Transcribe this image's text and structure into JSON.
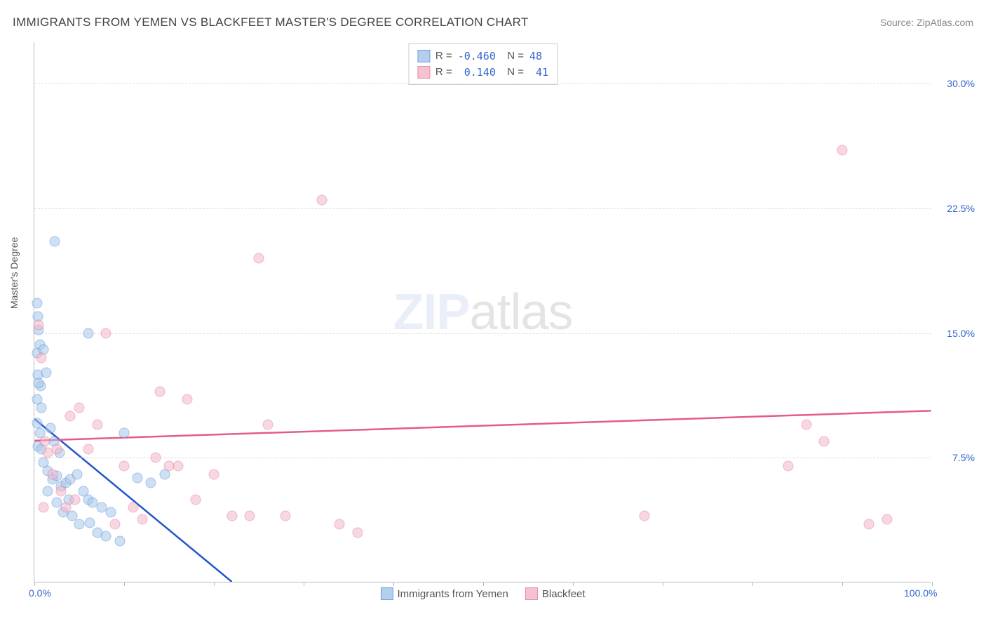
{
  "header": {
    "title": "IMMIGRANTS FROM YEMEN VS BLACKFEET MASTER'S DEGREE CORRELATION CHART",
    "source": "Source: ZipAtlas.com"
  },
  "chart": {
    "type": "scatter",
    "ylabel": "Master's Degree",
    "xlim": [
      0,
      100
    ],
    "ylim": [
      0,
      32.5
    ],
    "yticks": [
      7.5,
      15.0,
      22.5,
      30.0
    ],
    "ytick_labels": [
      "7.5%",
      "15.0%",
      "22.5%",
      "30.0%"
    ],
    "xtick_marks": [
      0,
      10,
      20,
      30,
      40,
      50,
      60,
      70,
      80,
      90,
      100
    ],
    "xtick_labels": {
      "0": "0.0%",
      "100": "100.0%"
    },
    "background_color": "#ffffff",
    "grid_color": "#dddddd",
    "axis_color": "#bbbbbb",
    "marker_size": 15,
    "series": [
      {
        "name": "Immigrants from Yemen",
        "fill_color": "#a7c7eb",
        "fill_opacity": 0.55,
        "stroke_color": "#5b8dd6",
        "trend_color": "#2255cc",
        "trend_width": 2.5,
        "R": "-0.460",
        "N": "48",
        "trend": {
          "x1": 0,
          "y1": 9.8,
          "x2": 22,
          "y2": 0
        },
        "points": [
          [
            0.3,
            16.8
          ],
          [
            0.4,
            16.0
          ],
          [
            0.5,
            15.2
          ],
          [
            0.3,
            13.8
          ],
          [
            0.6,
            14.3
          ],
          [
            0.4,
            12.5
          ],
          [
            0.7,
            11.8
          ],
          [
            0.5,
            12.0
          ],
          [
            1.0,
            14.0
          ],
          [
            1.3,
            12.6
          ],
          [
            0.3,
            11.0
          ],
          [
            0.8,
            10.5
          ],
          [
            0.3,
            9.6
          ],
          [
            0.6,
            9.0
          ],
          [
            0.4,
            8.2
          ],
          [
            0.8,
            8.0
          ],
          [
            1.8,
            9.3
          ],
          [
            2.2,
            8.5
          ],
          [
            2.8,
            7.8
          ],
          [
            1.0,
            7.2
          ],
          [
            1.5,
            6.7
          ],
          [
            2.0,
            6.2
          ],
          [
            2.5,
            6.4
          ],
          [
            3.0,
            5.8
          ],
          [
            3.5,
            6.0
          ],
          [
            4.0,
            6.2
          ],
          [
            4.8,
            6.5
          ],
          [
            5.5,
            5.5
          ],
          [
            6.0,
            5.0
          ],
          [
            6.5,
            4.8
          ],
          [
            7.5,
            4.5
          ],
          [
            8.5,
            4.2
          ],
          [
            2.5,
            4.8
          ],
          [
            3.2,
            4.2
          ],
          [
            4.2,
            4.0
          ],
          [
            5.0,
            3.5
          ],
          [
            6.2,
            3.6
          ],
          [
            7.0,
            3.0
          ],
          [
            8.0,
            2.8
          ],
          [
            9.5,
            2.5
          ],
          [
            10.0,
            9.0
          ],
          [
            11.5,
            6.3
          ],
          [
            13.0,
            6.0
          ],
          [
            14.5,
            6.5
          ],
          [
            6.0,
            15.0
          ],
          [
            2.3,
            20.5
          ],
          [
            1.5,
            5.5
          ],
          [
            3.8,
            5.0
          ]
        ]
      },
      {
        "name": "Blackfeet",
        "fill_color": "#f5b8c8",
        "fill_opacity": 0.55,
        "stroke_color": "#e07a9a",
        "trend_color": "#e55a8a",
        "trend_width": 2.5,
        "R": "0.140",
        "N": "41",
        "trend": {
          "x1": 0,
          "y1": 8.5,
          "x2": 100,
          "y2": 10.3
        },
        "points": [
          [
            0.5,
            15.5
          ],
          [
            0.8,
            13.5
          ],
          [
            1.2,
            8.5
          ],
          [
            1.5,
            7.8
          ],
          [
            2.0,
            6.5
          ],
          [
            2.5,
            8.0
          ],
          [
            3.0,
            5.5
          ],
          [
            3.5,
            4.5
          ],
          [
            4.0,
            10.0
          ],
          [
            5.0,
            10.5
          ],
          [
            6.0,
            8.0
          ],
          [
            7.0,
            9.5
          ],
          [
            8.0,
            15.0
          ],
          [
            9.0,
            3.5
          ],
          [
            10.0,
            7.0
          ],
          [
            11.0,
            4.5
          ],
          [
            12.0,
            3.8
          ],
          [
            13.5,
            7.5
          ],
          [
            14.0,
            11.5
          ],
          [
            15.0,
            7.0
          ],
          [
            16.0,
            7.0
          ],
          [
            17.0,
            11.0
          ],
          [
            18.0,
            5.0
          ],
          [
            20.0,
            6.5
          ],
          [
            22.0,
            4.0
          ],
          [
            24.0,
            4.0
          ],
          [
            25.0,
            19.5
          ],
          [
            26.0,
            9.5
          ],
          [
            28.0,
            4.0
          ],
          [
            32.0,
            23.0
          ],
          [
            34.0,
            3.5
          ],
          [
            36.0,
            3.0
          ],
          [
            68.0,
            4.0
          ],
          [
            84.0,
            7.0
          ],
          [
            86.0,
            9.5
          ],
          [
            88.0,
            8.5
          ],
          [
            90.0,
            26.0
          ],
          [
            93.0,
            3.5
          ],
          [
            95.0,
            3.8
          ],
          [
            1.0,
            4.5
          ],
          [
            4.5,
            5.0
          ]
        ]
      }
    ]
  },
  "watermark": {
    "part1": "ZIP",
    "part2": "atlas"
  }
}
